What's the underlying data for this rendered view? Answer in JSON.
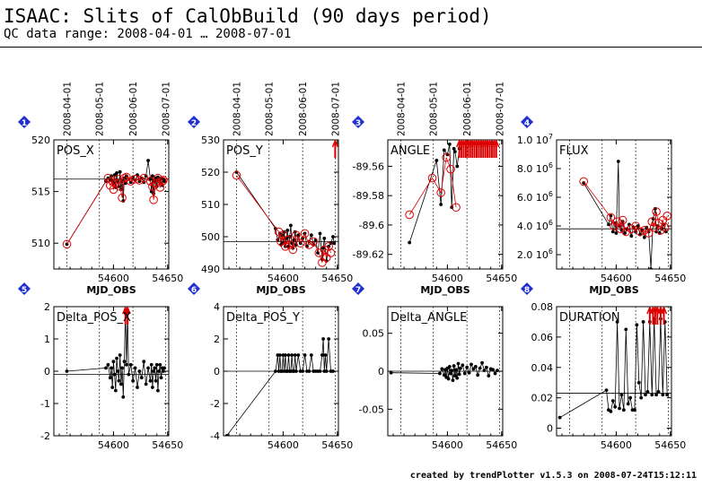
{
  "header": {
    "title": "ISAAC: Slits of CalObBuild (90 days period)",
    "subtitle": "QC data range: 2008-04-01 … 2008-07-01"
  },
  "footer": {
    "credit": "created by trendPlotter v1.5.3 on 2008-07-24T15:12:11"
  },
  "colors": {
    "data": "#000000",
    "highlight": "#dd0000",
    "badge": "#1f2fd0"
  },
  "date_ticks": [
    "2008-04-01",
    "2008-05-01",
    "2008-06-01",
    "2008-07-01"
  ],
  "date_ticks_mjd": [
    54557,
    54587,
    54618,
    54648
  ],
  "chart_data": [
    {
      "id": 1,
      "badge": "1",
      "type": "line",
      "label": "POS_X",
      "xlabel": "MJD_OBS",
      "xlim": [
        54545,
        54651
      ],
      "ylim": [
        507.5,
        520
      ],
      "xticks": [
        "54600",
        "54650"
      ],
      "xtick_values": [
        54600,
        54650
      ],
      "yticks": [
        "510",
        "515",
        "520"
      ],
      "ytick_values": [
        510,
        515,
        520
      ],
      "ref_line": 516.2,
      "series": [
        {
          "style": "black",
          "x": [
            54557,
            54593,
            54595,
            54597,
            54598,
            54599,
            54600,
            54601,
            54602,
            54603,
            54604,
            54605,
            54606,
            54607,
            54608,
            54609,
            54610,
            54611,
            54612,
            54614,
            54616,
            54618,
            54620,
            54622,
            54624,
            54626,
            54628,
            54630,
            54632,
            54634,
            54635,
            54636,
            54637,
            54638,
            54639,
            54640,
            54641,
            54642,
            54643,
            54644,
            54645,
            54646,
            54647
          ],
          "y": [
            509.9,
            516.0,
            516.3,
            516.1,
            516.5,
            516.0,
            515.8,
            516.6,
            515.4,
            516.8,
            516.0,
            515.5,
            516.9,
            515.2,
            516.0,
            514.1,
            516.3,
            515.8,
            516.5,
            516.2,
            515.9,
            516.4,
            516.1,
            516.6,
            516.0,
            516.3,
            515.9,
            516.5,
            518.0,
            516.2,
            515.0,
            516.5,
            514.8,
            516.0,
            516.3,
            515.5,
            516.4,
            516.0,
            515.8,
            516.3,
            515.6,
            516.2,
            516.0
          ]
        },
        {
          "style": "red-open",
          "x": [
            54557,
            54595,
            54597,
            54599,
            54600,
            54602,
            54604,
            54606,
            54608,
            54610,
            54612,
            54616,
            54620,
            54624,
            54628,
            54634,
            54636,
            54637,
            54639,
            54641,
            54643,
            54645,
            54646
          ],
          "y": [
            509.9,
            516.3,
            515.6,
            516.0,
            515.2,
            515.8,
            516.2,
            515.5,
            514.4,
            516.3,
            516.4,
            516.0,
            516.2,
            516.1,
            516.3,
            516.0,
            515.5,
            514.2,
            515.8,
            516.3,
            515.4,
            516.0,
            516.1
          ]
        }
      ]
    },
    {
      "id": 2,
      "badge": "2",
      "type": "line",
      "label": "POS_Y",
      "xlabel": "MJD_OBS",
      "xlim": [
        54545,
        54651
      ],
      "ylim": [
        490,
        530
      ],
      "xticks": [
        "54600",
        "54650"
      ],
      "xtick_values": [
        54600,
        54650
      ],
      "yticks": [
        "490",
        "500",
        "510",
        "520",
        "530"
      ],
      "ytick_values": [
        490,
        500,
        510,
        520,
        530
      ],
      "ref_line": 498.5,
      "clipped_above_x": [
        54648
      ],
      "series": [
        {
          "style": "black",
          "x": [
            54557,
            54593,
            54595,
            54597,
            54598,
            54599,
            54600,
            54601,
            54602,
            54603,
            54604,
            54605,
            54606,
            54607,
            54608,
            54609,
            54610,
            54611,
            54612,
            54614,
            54616,
            54618,
            54620,
            54622,
            54624,
            54626,
            54628,
            54630,
            54632,
            54634,
            54636,
            54637,
            54638,
            54640,
            54642,
            54644,
            54646,
            54647
          ],
          "y": [
            520.0,
            502.5,
            499.0,
            501.0,
            497.5,
            500.5,
            498.0,
            501.5,
            497.0,
            499.5,
            502.0,
            497.0,
            500.0,
            503.5,
            498.0,
            496.5,
            499.0,
            501.5,
            497.5,
            500.5,
            498.0,
            499.5,
            501.0,
            497.0,
            498.5,
            500.5,
            497.5,
            499.0,
            495.0,
            501.0,
            493.0,
            496.5,
            499.5,
            492.5,
            497.0,
            498.0,
            500.0,
            498.0
          ]
        },
        {
          "style": "red-open",
          "x": [
            54557,
            54596,
            54598,
            54600,
            54602,
            54604,
            54606,
            54609,
            54612,
            54616,
            54620,
            54624,
            54628,
            54633,
            54636,
            54638,
            54640,
            54642,
            54644
          ],
          "y": [
            519.0,
            501.5,
            498.5,
            500.5,
            497.0,
            499.0,
            497.5,
            496.0,
            500.5,
            498.0,
            501.0,
            497.5,
            498.5,
            495.0,
            492.0,
            496.0,
            493.5,
            497.0,
            495.0
          ]
        }
      ]
    },
    {
      "id": 3,
      "badge": "3",
      "type": "line",
      "label": "ANGLE",
      "xlabel": "MJD_OBS",
      "xlim": [
        54545,
        54651
      ],
      "ylim": [
        -89.63,
        -89.542
      ],
      "xticks": [
        "54600",
        "54650"
      ],
      "xtick_values": [
        54600,
        54650
      ],
      "yticks": [
        "-89.62",
        "-89.6",
        "-89.58",
        "-89.56"
      ],
      "ytick_values": [
        -89.62,
        -89.6,
        -89.58,
        -89.56
      ],
      "ref_line": null,
      "clipped_above_x": [
        54611,
        54613,
        54615,
        54617,
        54619,
        54621,
        54623,
        54625,
        54627,
        54629,
        54631,
        54633,
        54635,
        54637,
        54639,
        54641,
        54643,
        54645
      ],
      "series": [
        {
          "style": "black",
          "x": [
            54565,
            54590,
            54594,
            54597,
            54600,
            54602,
            54604,
            54606,
            54607,
            54609,
            54611
          ],
          "y": [
            -89.612,
            -89.556,
            -89.586,
            -89.549,
            -89.552,
            -89.545,
            -89.588,
            -89.548,
            -89.55,
            -89.56,
            -89.548
          ]
        },
        {
          "style": "red-open",
          "x": [
            54565,
            54586,
            54594,
            54599,
            54603,
            54608
          ],
          "y": [
            -89.593,
            -89.568,
            -89.578,
            -89.554,
            -89.562,
            -89.588
          ]
        }
      ]
    },
    {
      "id": 4,
      "badge": "4",
      "type": "line",
      "label": "FLUX",
      "xlabel": "MJD_OBS",
      "xlim": [
        54545,
        54651
      ],
      "ylim": [
        1000000,
        10000000
      ],
      "xticks": [
        "54600",
        "54650"
      ],
      "xtick_values": [
        54600,
        54650
      ],
      "yticks": [
        "2.0",
        "4.0",
        "6.0",
        "8.0",
        "1.0"
      ],
      "ytick_values": [
        2000000,
        4000000,
        6000000,
        8000000,
        10000000
      ],
      "ytick_exponents": [
        "6",
        "6",
        "6",
        "6",
        "7"
      ],
      "ref_line": 3800000,
      "series": [
        {
          "style": "black",
          "x": [
            54570,
            54593,
            54595,
            54597,
            54599,
            54600,
            54602,
            54603,
            54605,
            54606,
            54608,
            54610,
            54612,
            54614,
            54616,
            54618,
            54620,
            54622,
            54624,
            54626,
            54628,
            54630,
            54632,
            54634,
            54636,
            54637,
            54638,
            54640,
            54642,
            54644,
            54646
          ],
          "y": [
            7000000,
            4100000,
            4700000,
            3600000,
            4200000,
            3500000,
            8500000,
            4000000,
            3700000,
            4300000,
            3500000,
            3800000,
            4100000,
            3300000,
            3900000,
            3600000,
            4000000,
            3400000,
            3700000,
            3200000,
            3900000,
            3600000,
            1000000,
            4500000,
            5200000,
            3600000,
            4000000,
            3500000,
            3800000,
            4100000,
            3600000
          ]
        },
        {
          "style": "red-open",
          "x": [
            54570,
            54595,
            54598,
            54601,
            54604,
            54606,
            54609,
            54614,
            54618,
            54622,
            54626,
            54630,
            54633,
            54635,
            54637,
            54639,
            54641,
            54643,
            54645,
            54647
          ],
          "y": [
            7100000,
            4600000,
            4000000,
            4300000,
            3800000,
            4400000,
            3600000,
            3800000,
            4000000,
            3600000,
            3700000,
            3500000,
            4300000,
            3900000,
            5000000,
            4200000,
            3700000,
            4400000,
            3900000,
            4700000
          ]
        }
      ]
    },
    {
      "id": 5,
      "badge": "5",
      "type": "line",
      "label": "Delta_POS_X",
      "xlabel": "",
      "xlim": [
        54545,
        54651
      ],
      "ylim": [
        -2,
        2
      ],
      "xticks": [
        "54600",
        "54650"
      ],
      "xtick_values": [
        54600,
        54650
      ],
      "yticks": [
        "-2",
        "-1",
        "0",
        "1",
        "2"
      ],
      "ytick_values": [
        -2,
        -1,
        0,
        1,
        2
      ],
      "ref_line": -0.1,
      "clipped_above_x": [
        54611,
        54613
      ],
      "series": [
        {
          "style": "black",
          "x": [
            54557,
            54593,
            54595,
            54597,
            54598,
            54599,
            54600,
            54601,
            54602,
            54603,
            54604,
            54605,
            54606,
            54607,
            54608,
            54609,
            54610,
            54611,
            54612,
            54613,
            54614,
            54616,
            54618,
            54620,
            54622,
            54624,
            54626,
            54628,
            54630,
            54632,
            54634,
            54635,
            54636,
            54637,
            54638,
            54639,
            54640,
            54641,
            54642,
            54643,
            54644,
            54645,
            54646,
            54647
          ],
          "y": [
            0.0,
            0.1,
            0.2,
            -0.2,
            0.1,
            -0.5,
            0.3,
            -0.1,
            -0.6,
            0.4,
            0.0,
            -0.3,
            0.5,
            -0.4,
            0.1,
            -0.8,
            0.3,
            1.8,
            0.2,
            1.8,
            -0.1,
            0.2,
            -0.3,
            0.1,
            -0.5,
            0.0,
            -0.2,
            0.3,
            -0.4,
            0.1,
            -0.3,
            0.2,
            -0.5,
            0.0,
            0.1,
            -0.3,
            0.2,
            -0.6,
            0.0,
            0.2,
            -0.2,
            0.1,
            0.0,
            0.1
          ]
        }
      ]
    },
    {
      "id": 6,
      "badge": "6",
      "type": "line",
      "label": "Delta_POS_Y",
      "xlabel": "",
      "xlim": [
        54545,
        54651
      ],
      "ylim": [
        -4,
        4
      ],
      "xticks": [
        "54600",
        "54650"
      ],
      "xtick_values": [
        54600,
        54650
      ],
      "yticks": [
        "-4",
        "-2",
        "0",
        "2",
        "4"
      ],
      "ytick_values": [
        -4,
        -2,
        0,
        2,
        4
      ],
      "ref_line": 0,
      "series": [
        {
          "style": "black",
          "x": [
            54548,
            54593,
            54595,
            54596,
            54597,
            54598,
            54599,
            54600,
            54601,
            54602,
            54603,
            54604,
            54605,
            54606,
            54607,
            54608,
            54609,
            54610,
            54611,
            54612,
            54614,
            54616,
            54618,
            54620,
            54622,
            54624,
            54626,
            54628,
            54630,
            54632,
            54634,
            54636,
            54637,
            54638,
            54639,
            54640,
            54642,
            54644,
            54646
          ],
          "y": [
            -4.0,
            0.0,
            1.0,
            0.0,
            1.0,
            0.0,
            0.0,
            1.0,
            0.0,
            1.0,
            0.0,
            0.0,
            1.0,
            0.0,
            0.0,
            1.0,
            0.0,
            0.0,
            1.0,
            0.0,
            1.0,
            0.0,
            0.0,
            1.0,
            0.0,
            0.0,
            1.0,
            0.0,
            0.0,
            0.0,
            0.0,
            1.0,
            2.0,
            0.0,
            1.0,
            0.0,
            2.0,
            0.0,
            0.0
          ]
        }
      ]
    },
    {
      "id": 7,
      "badge": "7",
      "type": "line",
      "label": "Delta_ANGLE",
      "xlabel": "",
      "xlim": [
        54545,
        54651
      ],
      "ylim": [
        -0.085,
        0.085
      ],
      "xticks": [
        "54600",
        "54650"
      ],
      "xtick_values": [
        54600,
        54650
      ],
      "yticks": [
        "-0.05",
        "0",
        "0.05"
      ],
      "ytick_values": [
        -0.05,
        0,
        0.05
      ],
      "ref_line": 0,
      "series": [
        {
          "style": "black",
          "x": [
            54548,
            54593,
            54595,
            54597,
            54598,
            54599,
            54600,
            54601,
            54602,
            54603,
            54604,
            54605,
            54606,
            54607,
            54608,
            54609,
            54610,
            54611,
            54612,
            54614,
            54616,
            54618,
            54620,
            54622,
            54624,
            54626,
            54628,
            54630,
            54632,
            54634,
            54636,
            54638,
            54640,
            54642,
            54644,
            54646
          ],
          "y": [
            -0.002,
            -0.003,
            0.003,
            -0.005,
            0.002,
            -0.008,
            0.004,
            -0.01,
            0.006,
            -0.003,
            0.001,
            -0.012,
            0.007,
            -0.006,
            0.002,
            -0.009,
            0.01,
            -0.004,
            0.004,
            0.008,
            -0.003,
            0.005,
            -0.002,
            0.009,
            0.003,
            0.006,
            -0.005,
            0.004,
            0.011,
            0.001,
            0.005,
            -0.006,
            0.003,
            0.002,
            -0.003,
            0.001
          ]
        }
      ]
    },
    {
      "id": 8,
      "badge": "8",
      "type": "line",
      "label": "DURATION",
      "xlabel": "",
      "xlim": [
        54545,
        54651
      ],
      "ylim": [
        -0.005,
        0.08
      ],
      "xticks": [
        "54600",
        "54650"
      ],
      "xtick_values": [
        54600,
        54650
      ],
      "yticks": [
        "0",
        "0.02",
        "0.04",
        "0.06",
        "0.08"
      ],
      "ytick_values": [
        0,
        0.02,
        0.04,
        0.06,
        0.08
      ],
      "ref_line": 0.023,
      "clipped_above_x": [
        54631,
        54634,
        54636,
        54638,
        54641,
        54644
      ],
      "series": [
        {
          "style": "black",
          "x": [
            54548,
            54591,
            54593,
            54595,
            54597,
            54599,
            54601,
            54603,
            54605,
            54607,
            54609,
            54611,
            54613,
            54615,
            54617,
            54619,
            54621,
            54623,
            54625,
            54627,
            54629,
            54631,
            54633,
            54635,
            54637,
            54639,
            54641,
            54643,
            54645,
            54647
          ],
          "y": [
            0.007,
            0.025,
            0.012,
            0.011,
            0.018,
            0.014,
            0.07,
            0.013,
            0.022,
            0.012,
            0.065,
            0.016,
            0.02,
            0.012,
            0.012,
            0.068,
            0.03,
            0.02,
            0.07,
            0.022,
            0.024,
            0.07,
            0.022,
            0.072,
            0.022,
            0.024,
            0.072,
            0.022,
            0.07,
            0.022
          ]
        }
      ]
    }
  ]
}
